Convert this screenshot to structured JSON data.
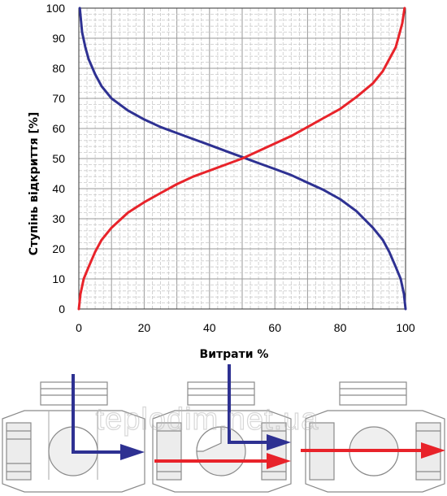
{
  "chart_data": {
    "type": "line",
    "xlabel": "Витрати %",
    "ylabel": "Ступінь відкриття  [%]",
    "xlim": [
      0,
      100
    ],
    "ylim": [
      0,
      100
    ],
    "x_ticks": [
      "0",
      "20",
      "40",
      "60",
      "80",
      "100"
    ],
    "y_ticks": [
      "0",
      "10",
      "20",
      "30",
      "40",
      "50",
      "60",
      "70",
      "80",
      "90",
      "100"
    ],
    "grid": true,
    "legend": "none",
    "series": [
      {
        "color": "#2e3192",
        "x": [
          0.3,
          1,
          2,
          3,
          5,
          7,
          10,
          15,
          20,
          25,
          30,
          35,
          40,
          45,
          50,
          55,
          60,
          65,
          70,
          75,
          80,
          85,
          90,
          93,
          95,
          97,
          98.5,
          99.5,
          100
        ],
        "y": [
          100,
          92,
          87,
          83,
          78,
          74,
          70,
          66,
          63,
          60.5,
          58.5,
          56.5,
          54.5,
          52.5,
          50.5,
          48.5,
          46.5,
          44.5,
          42,
          39.5,
          36.5,
          32.5,
          27,
          23,
          19,
          14,
          10,
          5,
          0
        ]
      },
      {
        "color": "#e8232a",
        "x": [
          0,
          0.5,
          1.5,
          3,
          5,
          7,
          10,
          15,
          20,
          25,
          30,
          35,
          40,
          45,
          50,
          55,
          60,
          65,
          70,
          75,
          80,
          85,
          90,
          93,
          95,
          97,
          98,
          99,
          99.7
        ],
        "y": [
          0,
          5,
          10,
          14,
          19,
          23,
          27,
          32,
          35.5,
          38.5,
          41.5,
          44,
          46,
          48,
          50,
          52.5,
          55,
          57.5,
          60.5,
          63.5,
          66.5,
          70.5,
          75,
          79,
          83,
          87,
          91,
          95,
          100
        ]
      }
    ]
  },
  "watermark_text": "teplodim.net.ua",
  "colors": {
    "blue": "#2e3192",
    "red": "#e8232a",
    "valve_outline": "#8a8a8a"
  }
}
